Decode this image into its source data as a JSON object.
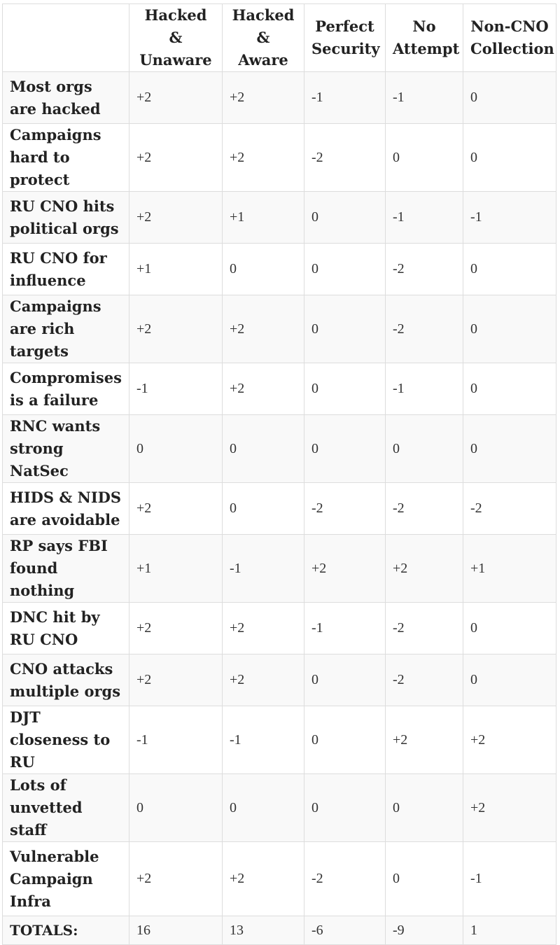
{
  "table": {
    "corner": "",
    "headers": [
      "Hacked & Unaware",
      "Hacked & Aware",
      "Perfect Security",
      "No Attempt",
      "Non-CNO Collection"
    ],
    "rows": [
      {
        "evidence": "Most orgs are hacked",
        "scores": [
          "+2",
          "+2",
          "-1",
          "-1",
          "0"
        ]
      },
      {
        "evidence": "Campaigns hard to protect",
        "scores": [
          "+2",
          "+2",
          "-2",
          "0",
          "0"
        ]
      },
      {
        "evidence": "RU CNO hits political orgs",
        "scores": [
          "+2",
          "+1",
          "0",
          "-1",
          "-1"
        ]
      },
      {
        "evidence": "RU CNO for influence",
        "scores": [
          "+1",
          "0",
          "0",
          "-2",
          "0"
        ]
      },
      {
        "evidence": "Campaigns are rich targets",
        "scores": [
          "+2",
          "+2",
          "0",
          "-2",
          "0"
        ]
      },
      {
        "evidence": "Compromises is a failure",
        "scores": [
          "-1",
          "+2",
          "0",
          "-1",
          "0"
        ]
      },
      {
        "evidence": "RNC wants strong NatSec",
        "scores": [
          "0",
          "0",
          "0",
          "0",
          "0"
        ]
      },
      {
        "evidence": "HIDS & NIDS are avoidable",
        "scores": [
          "+2",
          "0",
          "-2",
          "-2",
          "-2"
        ]
      },
      {
        "evidence": "RP says FBI found nothing",
        "scores": [
          "+1",
          "-1",
          "+2",
          "+2",
          "+1"
        ]
      },
      {
        "evidence": "DNC hit by RU CNO",
        "scores": [
          "+2",
          "+2",
          "-1",
          "-2",
          "0"
        ]
      },
      {
        "evidence": "CNO attacks multiple orgs",
        "scores": [
          "+2",
          "+2",
          "0",
          "-2",
          "0"
        ]
      },
      {
        "evidence": "DJT closeness to RU",
        "scores": [
          "-1",
          "-1",
          "0",
          "+2",
          "+2"
        ]
      },
      {
        "evidence": "Lots of unvetted staff",
        "scores": [
          "0",
          "0",
          "0",
          "0",
          "+2"
        ]
      },
      {
        "evidence": "Vulnerable Campaign Infra",
        "scores": [
          "+2",
          "+2",
          "-2",
          "0",
          "-1"
        ]
      }
    ],
    "totals": {
      "label": "TOTALS:",
      "scores": [
        "16",
        "13",
        "-6",
        "-9",
        "1"
      ]
    }
  }
}
